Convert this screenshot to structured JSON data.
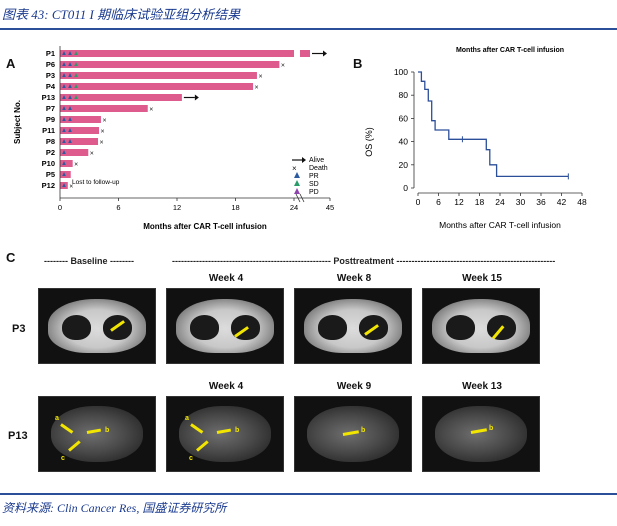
{
  "caption": "图表 43:  CT011 I 期临床试验亚组分析结果",
  "source": "资料来源:  Clin Cancer Res,  国盛证券研究所",
  "panels": {
    "a": "A",
    "b": "B",
    "c": "C"
  },
  "chart_data": [
    {
      "type": "bar",
      "title": "",
      "xlabel": "Months after CAR T-cell infusion",
      "ylabel": "Subject No.",
      "categories": [
        "P1",
        "P6",
        "P3",
        "P4",
        "P13",
        "P7",
        "P9",
        "P11",
        "P8",
        "P2",
        "P10",
        "P5",
        "P12"
      ],
      "values": [
        31,
        22.5,
        20.2,
        19.8,
        12.5,
        9,
        4.2,
        4,
        3.9,
        2.9,
        1.3,
        1.1,
        0.8
      ],
      "alive": [
        "P1",
        "P13"
      ],
      "deaths": [
        "P6",
        "P3",
        "P4",
        "P7",
        "P9",
        "P11",
        "P8",
        "P2",
        "P10",
        "P12"
      ],
      "xticks": [
        "0",
        "6",
        "12",
        "18",
        "24",
        "45"
      ],
      "annotation": "Lost to follow-up",
      "legend": [
        "Alive",
        "Death",
        "PR",
        "SD",
        "PD"
      ],
      "colors": {
        "bar": "#de5b8d",
        "PR": "#2c5aa0",
        "SD": "#2a9b6b",
        "PD": "#8e44ad",
        "death": "#222222"
      }
    },
    {
      "type": "line",
      "title": "Months after CAR T-cell infusion",
      "xlabel": "Months after CAR T-cell infusion",
      "ylabel": "OS (%)",
      "x": [
        0,
        1,
        1,
        2,
        2,
        3,
        3,
        4,
        4,
        5,
        5,
        9,
        9,
        20,
        20,
        21,
        21,
        23,
        23,
        44
      ],
      "y": [
        100,
        100,
        92,
        92,
        85,
        85,
        75,
        75,
        58,
        58,
        50,
        50,
        42,
        42,
        33,
        33,
        20,
        20,
        10,
        10
      ],
      "censored": [
        [
          13,
          42
        ],
        [
          44,
          10
        ]
      ],
      "xticks": [
        "0",
        "6",
        "12",
        "18",
        "24",
        "30",
        "36",
        "42",
        "48"
      ],
      "yticks": [
        "0",
        "20",
        "40",
        "60",
        "80",
        "100"
      ],
      "xlim": [
        0,
        48
      ],
      "ylim": [
        0,
        100
      ],
      "color": "#2c4f9a"
    }
  ],
  "panel_c": {
    "baseline": "-------- Baseline --------",
    "posttreatment": "----------------------------------------------------- Posttreatment -----------------------------------------------------",
    "rows": [
      {
        "label": "P3",
        "weeks": [
          "Week 4",
          "Week 8",
          "Week 15"
        ]
      },
      {
        "label": "P13",
        "weeks": [
          "Week 4",
          "Week 9",
          "Week 13"
        ]
      }
    ],
    "lesion_letters": [
      "a",
      "b",
      "c"
    ]
  }
}
